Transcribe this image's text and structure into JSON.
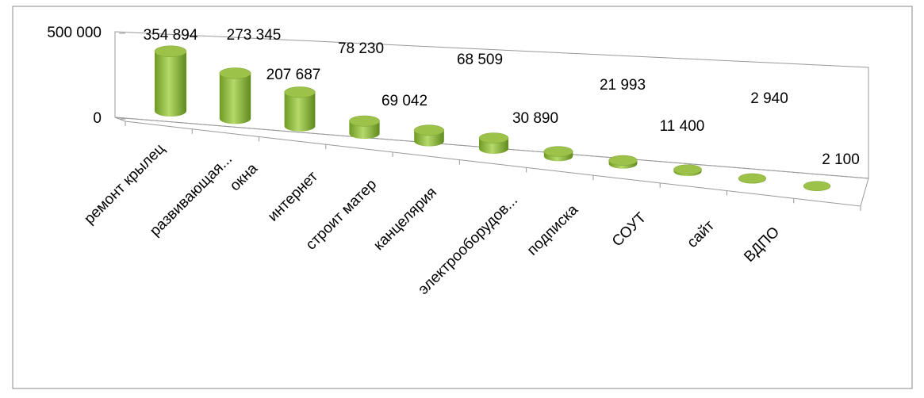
{
  "chart_data": {
    "type": "bar3d",
    "categories": [
      "ремонт крылец",
      "развивающая...",
      "окна",
      "интернет",
      "строит матер",
      "канцелярия",
      "электрооборудов...",
      "подписка",
      "СОУТ",
      "сайт",
      "ВДПО"
    ],
    "values": [
      354894,
      273345,
      207687,
      78230,
      69042,
      68509,
      30890,
      21993,
      11400,
      2940,
      2100
    ],
    "value_labels": [
      "354 894",
      "273 345",
      "207 687",
      "78 230",
      "69 042",
      "68 509",
      "30 890",
      "21 993",
      "11 400",
      "2 940",
      "2 100"
    ],
    "color": "#8db33a",
    "ylim": [
      0,
      500000
    ],
    "yticks": [
      0,
      {
        "value": 500000,
        "label": "500 000"
      }
    ]
  }
}
